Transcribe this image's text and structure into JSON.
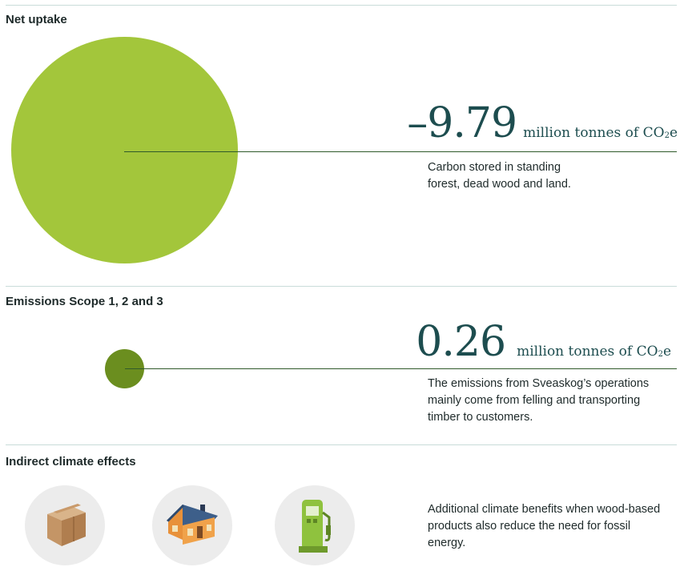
{
  "net_uptake": {
    "title": "Net uptake",
    "value": "–9.79",
    "unit_prefix": "million tonnes of CO",
    "unit_sub": "2",
    "unit_suffix": "e",
    "description_line1": "Carbon stored in standing",
    "description_line2": "forest, dead wood and land.",
    "color": "#a3c63b"
  },
  "emissions": {
    "title": "Emissions Scope 1, 2 and 3",
    "value": "0.26",
    "unit_prefix": "million tonnes of CO",
    "unit_sub": "2",
    "unit_suffix": "e",
    "description_line1": "The emissions from Sveaskog’s operations",
    "description_line2": "mainly come from felling and transporting",
    "description_line3": "timber to customers.",
    "color": "#6b8e1f"
  },
  "indirect": {
    "title": "Indirect climate effects",
    "description_line1": "Additional climate benefits when wood-based",
    "description_line2": "products also reduce the need for fossil",
    "description_line3": "energy.",
    "icons": [
      "cardboard-box-icon",
      "wooden-house-icon",
      "biofuel-pump-icon"
    ]
  }
}
